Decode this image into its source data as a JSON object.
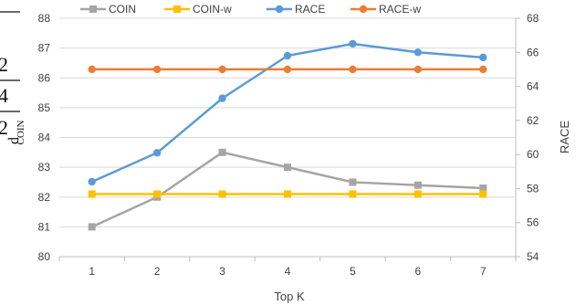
{
  "chart_data": {
    "type": "line",
    "categories": [
      1,
      2,
      3,
      4,
      5,
      6,
      7
    ],
    "xlabel": "Top K",
    "ylabel_left": "",
    "ylabel_right": "RACE",
    "ylim_left": [
      80,
      88
    ],
    "yticks_left": [
      80,
      81,
      82,
      83,
      84,
      85,
      86,
      87,
      88
    ],
    "ylim_right": [
      54,
      68
    ],
    "yticks_right": [
      54,
      56,
      58,
      60,
      62,
      64,
      66,
      68
    ],
    "grid": "horizontal",
    "legend_position": "top",
    "series": [
      {
        "name": "COIN",
        "axis": "left",
        "color": "#A5A5A5",
        "marker": "square",
        "values": [
          81.0,
          82.0,
          83.5,
          83.0,
          82.5,
          82.4,
          82.3
        ]
      },
      {
        "name": "COIN-w",
        "axis": "left",
        "color": "#FFC000",
        "marker": "square",
        "values": [
          82.1,
          82.1,
          82.1,
          82.1,
          82.1,
          82.1,
          82.1
        ]
      },
      {
        "name": "RACE",
        "axis": "right",
        "color": "#5B9BD5",
        "marker": "circle",
        "values": [
          58.4,
          60.1,
          63.3,
          65.8,
          66.5,
          66.0,
          65.7
        ]
      },
      {
        "name": "RACE-w",
        "axis": "right",
        "color": "#ED7D31",
        "marker": "circle",
        "values": [
          65.0,
          65.0,
          65.0,
          65.0,
          65.0,
          65.0,
          65.0
        ]
      }
    ]
  },
  "overlay": {
    "glyph_1": "2",
    "glyph_2": "4",
    "glyph_3": "2",
    "left_axis_fragment": "d",
    "left_axis_subscript": "COIN"
  }
}
